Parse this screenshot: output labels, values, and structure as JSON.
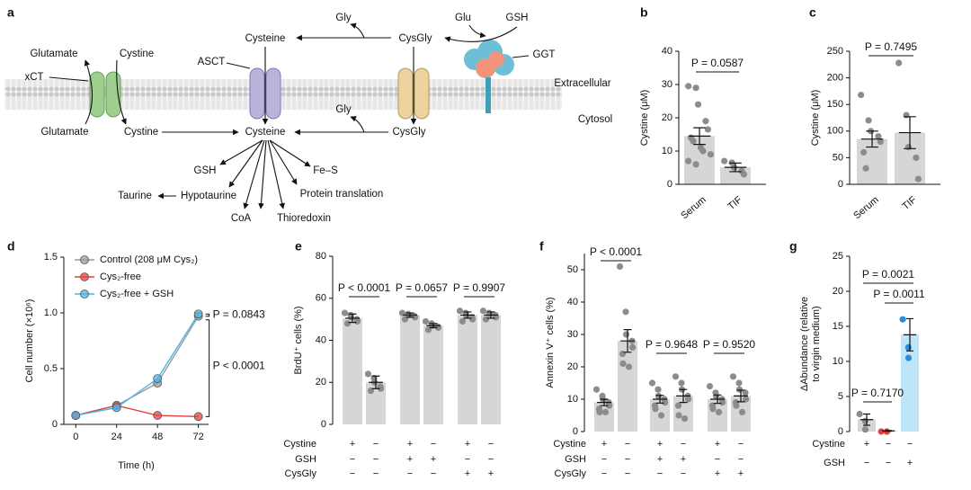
{
  "diagram": {
    "panel": "a",
    "labels": [
      "Gly",
      "Glu",
      "GSH",
      "Cysteine",
      "CysGly",
      "GGT",
      "Glutamate",
      "Cystine",
      "xCT",
      "ASCT",
      "Extracellular",
      "Cytosol",
      "Gly",
      "Glutamate",
      "Cystine",
      "Cysteine",
      "CysGly",
      "GSH",
      "Fe–S",
      "Taurine",
      "Hypotaurine",
      "Protein translation",
      "CoA",
      "Thioredoxin"
    ]
  },
  "chart_data": [
    {
      "type": "bar",
      "panel": "b",
      "ylabel": "Cystine (μM)",
      "categories": [
        "Serum",
        "TIF"
      ],
      "values": [
        14.5,
        5.1
      ],
      "errors": [
        2.5,
        1.3
      ],
      "points": [
        [
          29.5,
          29,
          24,
          19,
          16.5,
          14,
          13,
          11,
          10,
          9,
          7,
          6
        ],
        [
          7,
          6.5,
          5,
          4,
          3
        ]
      ],
      "colors": [
        "#d6d6d6",
        "#d6d6d6"
      ],
      "point_colors": [
        "#8c8c8c",
        "#8c8c8c"
      ],
      "ylim": [
        0,
        40
      ],
      "yticks": [
        0,
        10,
        20,
        30,
        40
      ],
      "annotations": [
        "P = 0.0587"
      ]
    },
    {
      "type": "bar",
      "panel": "c",
      "ylabel": "Cystine (μM)",
      "categories": [
        "Serum",
        "TIF"
      ],
      "values": [
        85,
        97
      ],
      "errors": [
        15,
        30
      ],
      "points": [
        [
          168,
          120,
          100,
          90,
          80,
          60,
          30
        ],
        [
          228,
          130,
          70,
          50,
          10
        ]
      ],
      "colors": [
        "#d6d6d6",
        "#d6d6d6"
      ],
      "point_colors": [
        "#8c8c8c",
        "#8c8c8c"
      ],
      "ylim": [
        0,
        250
      ],
      "yticks": [
        0,
        50,
        100,
        150,
        200,
        250
      ],
      "annotations": [
        "P = 0.7495"
      ]
    },
    {
      "type": "line",
      "panel": "d",
      "ylabel": "Cell number (×10⁶)",
      "xlabel": "Time (h)",
      "x": [
        0,
        24,
        48,
        72
      ],
      "series": [
        {
          "name": "Control (208 μM Cys₂)",
          "color": "#9a9a9a",
          "values": [
            0.08,
            0.17,
            0.37,
            0.97
          ]
        },
        {
          "name": "Cys₂-free",
          "color": "#e0433f",
          "values": [
            0.08,
            0.17,
            0.08,
            0.07
          ]
        },
        {
          "name": "Cys₂-free + GSH",
          "color": "#4fb3e8",
          "values": [
            0.08,
            0.15,
            0.41,
            0.99
          ]
        }
      ],
      "xlim": [
        -7,
        78
      ],
      "xticks": [
        0,
        24,
        48,
        72
      ],
      "ylim": [
        0,
        1.5
      ],
      "yticks": [
        0,
        0.5,
        {
          "value": 1,
          "label": "1.0"
        },
        1.5
      ],
      "legend": "upper left",
      "annotations": [
        "P = 0.0843",
        "P < 0.0001"
      ]
    },
    {
      "type": "bar",
      "panel": "e",
      "ylabel": "BrdU⁺ cells (%)",
      "values": [
        50.5,
        20,
        52,
        47,
        52,
        52
      ],
      "errors": [
        2,
        3,
        1,
        1,
        1.5,
        1.5
      ],
      "points": [
        [
          53,
          52,
          51,
          50,
          49,
          48
        ],
        [
          24,
          22,
          20,
          18,
          17,
          16
        ],
        [
          53,
          52.5,
          52,
          51.5,
          51,
          50
        ],
        [
          49,
          48,
          47,
          46.5,
          46,
          45
        ],
        [
          54,
          53,
          52,
          51,
          50,
          49
        ],
        [
          54,
          53,
          52.5,
          52,
          51,
          50
        ]
      ],
      "colors": [
        "#d6d6d6",
        "#d6d6d6",
        "#d6d6d6",
        "#d6d6d6",
        "#d6d6d6",
        "#d6d6d6"
      ],
      "point_colors": [
        "#8c8c8c",
        "#8c8c8c",
        "#8c8c8c",
        "#8c8c8c",
        "#8c8c8c",
        "#8c8c8c"
      ],
      "conditions": [
        {
          "name": "Cystine",
          "values": [
            "+",
            "−",
            "+",
            "−",
            "+",
            "−"
          ]
        },
        {
          "name": "GSH",
          "values": [
            "−",
            "−",
            "+",
            "+",
            "−",
            "−"
          ]
        },
        {
          "name": "CysGly",
          "values": [
            "−",
            "−",
            "−",
            "−",
            "+",
            "+"
          ]
        }
      ],
      "ylim": [
        0,
        80
      ],
      "yticks": [
        0,
        20,
        40,
        60,
        80
      ],
      "annotations": [
        "P < 0.0001",
        "P = 0.0657",
        "P = 0.9907"
      ]
    },
    {
      "type": "bar",
      "panel": "f",
      "ylabel": "Annexin V⁺ cells (%)",
      "values": [
        9,
        28,
        10,
        11,
        10,
        11
      ],
      "errors": [
        1,
        3.5,
        1.2,
        2,
        1.3,
        1.8
      ],
      "points": [
        [
          13,
          11,
          10,
          9,
          8,
          7,
          6,
          6
        ],
        [
          51,
          37,
          30,
          28,
          26,
          24,
          21,
          20
        ],
        [
          15,
          13,
          11,
          10,
          9,
          8,
          7,
          5
        ],
        [
          17,
          15,
          13,
          11,
          10,
          8,
          5,
          4
        ],
        [
          14,
          12,
          11,
          10,
          9,
          8,
          7,
          6
        ],
        [
          17,
          15,
          13,
          12,
          10,
          9,
          8,
          6
        ]
      ],
      "colors": [
        "#d6d6d6",
        "#d6d6d6",
        "#d6d6d6",
        "#d6d6d6",
        "#d6d6d6",
        "#d6d6d6"
      ],
      "point_colors": [
        "#8c8c8c",
        "#8c8c8c",
        "#8c8c8c",
        "#8c8c8c",
        "#8c8c8c",
        "#8c8c8c"
      ],
      "conditions": [
        {
          "name": "Cystine",
          "values": [
            "+",
            "−",
            "+",
            "−",
            "+",
            "−"
          ]
        },
        {
          "name": "GSH",
          "values": [
            "−",
            "−",
            "+",
            "+",
            "−",
            "−"
          ]
        },
        {
          "name": "CysGly",
          "values": [
            "−",
            "−",
            "−",
            "−",
            "+",
            "+"
          ]
        }
      ],
      "ylim": [
        0,
        55
      ],
      "yticks": [
        0,
        10,
        20,
        30,
        40,
        50
      ],
      "annotations": [
        "P < 0.0001",
        "P = 0.9648",
        "P = 0.9520"
      ]
    },
    {
      "type": "bar",
      "panel": "g",
      "ylabel": [
        "ΔAbundance (relative",
        "to virgin medium)"
      ],
      "values": [
        1.7,
        0.1,
        13.8
      ],
      "errors": [
        0.8,
        0.05,
        2.3
      ],
      "points": [
        [
          2.5,
          1.5,
          0.3
        ],
        [
          0,
          0,
          0
        ],
        [
          16,
          12,
          10.5
        ]
      ],
      "colors": [
        "#d6d6d6",
        "#f4c4c0",
        "#bfe5f8"
      ],
      "point_colors": [
        "#8c8c8c",
        "#e0433f",
        "#2e8de0"
      ],
      "conditions": [
        {
          "name": "Cystine",
          "values": [
            "+",
            "−",
            "−"
          ]
        },
        {
          "name": "GSH",
          "values": [
            "−",
            "−",
            "+"
          ]
        }
      ],
      "ylim": [
        0,
        25
      ],
      "yticks": [
        0,
        5,
        10,
        15,
        20,
        25
      ],
      "annotations": [
        "P = 0.0021",
        "P = 0.0011",
        "P = 0.7170"
      ]
    }
  ]
}
